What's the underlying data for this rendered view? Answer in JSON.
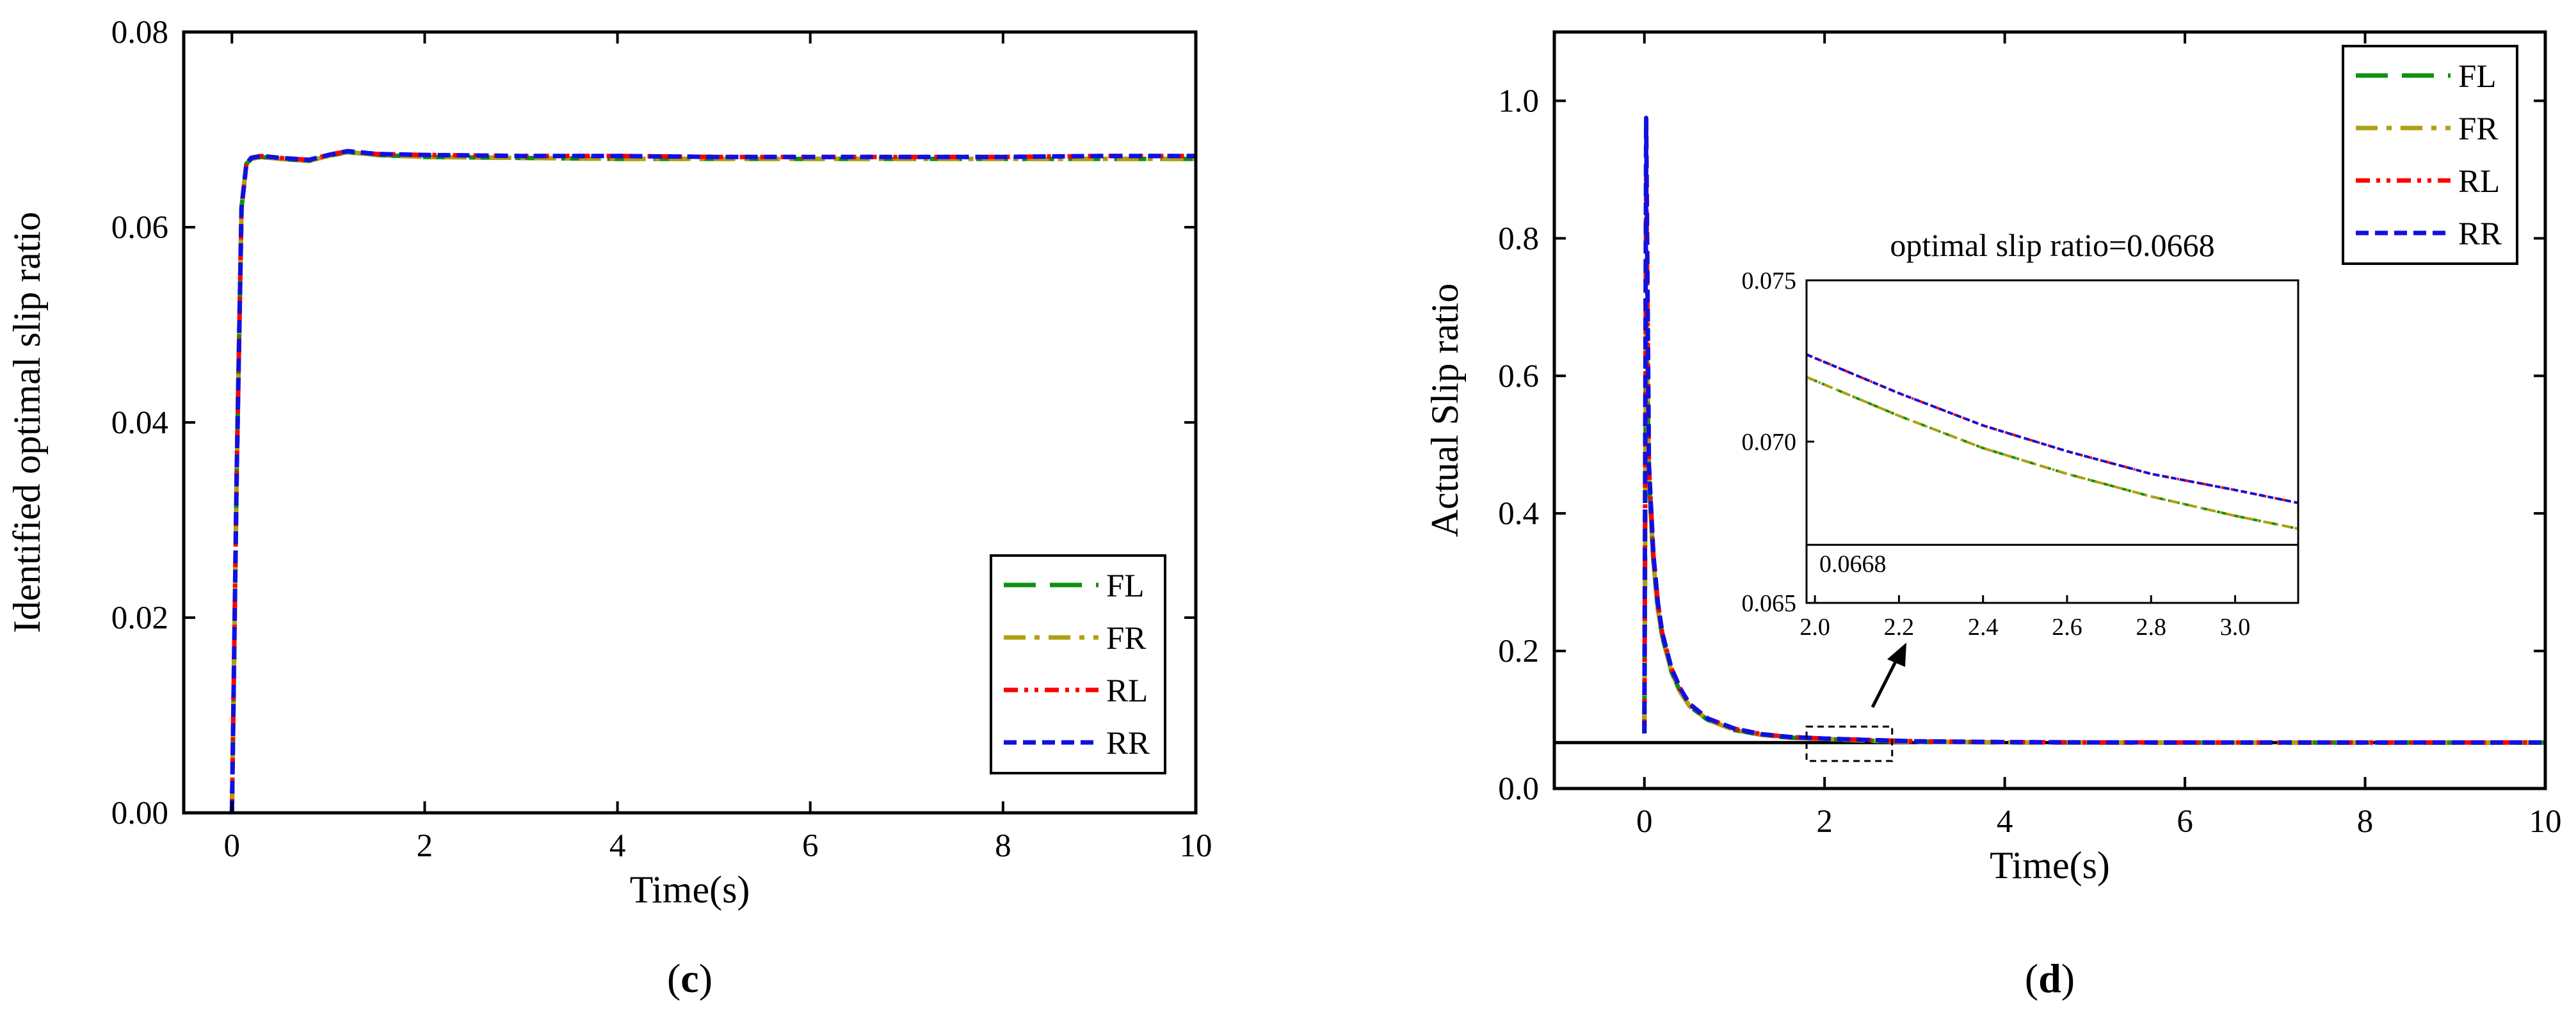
{
  "chart_data": [
    {
      "type": "line",
      "panel": "c",
      "caption_open": "(",
      "caption_letter": "c",
      "caption_close": ")",
      "title": "",
      "xlabel": "Time(s)",
      "ylabel": "Identified optimal slip ratio",
      "xlim": [
        -0.5,
        10
      ],
      "ylim": [
        0,
        0.08
      ],
      "xticks": [
        0,
        2,
        4,
        6,
        8,
        10
      ],
      "xtick_labels": [
        "0",
        "2",
        "4",
        "6",
        "8",
        "10"
      ],
      "yticks": [
        0,
        0.02,
        0.04,
        0.06,
        0.08
      ],
      "ytick_labels": [
        "0.00",
        "0.02",
        "0.04",
        "0.06",
        "0.08"
      ],
      "legend_position": "bottom-right",
      "x": [
        0,
        0.05,
        0.1,
        0.15,
        0.2,
        0.3,
        0.5,
        0.8,
        1.0,
        1.2,
        1.5,
        2,
        3,
        4,
        5,
        6,
        7,
        8,
        9,
        10
      ],
      "series": [
        {
          "name": "FL",
          "color": "#109010",
          "dash": "long-dash",
          "values": [
            0,
            0.035,
            0.062,
            0.0665,
            0.067,
            0.0672,
            0.067,
            0.0668,
            0.0673,
            0.0677,
            0.0674,
            0.0672,
            0.0671,
            0.067,
            0.067,
            0.067,
            0.067,
            0.067,
            0.067,
            0.067
          ]
        },
        {
          "name": "FR",
          "color": "#b0a010",
          "dash": "dash-dot",
          "values": [
            0,
            0.035,
            0.062,
            0.0665,
            0.067,
            0.0672,
            0.067,
            0.0668,
            0.0673,
            0.0677,
            0.0674,
            0.0672,
            0.0671,
            0.067,
            0.067,
            0.067,
            0.067,
            0.067,
            0.067,
            0.067
          ]
        },
        {
          "name": "RL",
          "color": "#ff0000",
          "dash": "dash-dot-dot",
          "values": [
            0,
            0.035,
            0.062,
            0.0665,
            0.0671,
            0.0673,
            0.0671,
            0.0669,
            0.0674,
            0.0678,
            0.0675,
            0.0674,
            0.0673,
            0.0673,
            0.0672,
            0.0672,
            0.0672,
            0.0672,
            0.0673,
            0.0673
          ]
        },
        {
          "name": "RR",
          "color": "#1010e0",
          "dash": "short-dash",
          "values": [
            0,
            0.035,
            0.062,
            0.0665,
            0.0671,
            0.0673,
            0.0671,
            0.0669,
            0.0674,
            0.0678,
            0.0675,
            0.0674,
            0.0673,
            0.0673,
            0.0672,
            0.0672,
            0.0672,
            0.0672,
            0.0673,
            0.0673
          ]
        }
      ]
    },
    {
      "type": "line",
      "panel": "d",
      "caption_open": "(",
      "caption_letter": "d",
      "caption_close": ")",
      "title": "",
      "xlabel": "Time(s)",
      "ylabel": "Actual Slip ratio",
      "xlim": [
        -1,
        10
      ],
      "ylim": [
        0,
        1.1
      ],
      "xticks": [
        0,
        2,
        4,
        6,
        8,
        10
      ],
      "xtick_labels": [
        "0",
        "2",
        "4",
        "6",
        "8",
        "10"
      ],
      "yticks": [
        0,
        0.2,
        0.4,
        0.6,
        0.8,
        1.0
      ],
      "ytick_labels": [
        "0.0",
        "0.2",
        "0.4",
        "0.6",
        "0.8",
        "1.0"
      ],
      "reference_line": {
        "y": 0.0668,
        "color": "#000000"
      },
      "zoom_box": {
        "x": [
          1.8,
          2.75
        ],
        "y": [
          0.04,
          0.09
        ]
      },
      "legend_position": "top-right",
      "x": [
        0,
        0.02,
        0.05,
        0.1,
        0.15,
        0.2,
        0.3,
        0.4,
        0.5,
        0.7,
        1.0,
        1.3,
        1.6,
        2.0,
        2.5,
        3,
        4,
        5,
        6,
        7,
        8,
        9,
        10
      ],
      "series": [
        {
          "name": "FL",
          "color": "#109010",
          "dash": "long-dash",
          "values": [
            0.09,
            0.7,
            0.45,
            0.33,
            0.26,
            0.22,
            0.17,
            0.14,
            0.12,
            0.1,
            0.085,
            0.078,
            0.074,
            0.072,
            0.0695,
            0.068,
            0.067,
            0.0668,
            0.0668,
            0.0668,
            0.0668,
            0.0668,
            0.0668
          ]
        },
        {
          "name": "FR",
          "color": "#b0a010",
          "dash": "dash-dot",
          "values": [
            0.09,
            0.7,
            0.45,
            0.33,
            0.26,
            0.22,
            0.17,
            0.14,
            0.12,
            0.1,
            0.085,
            0.078,
            0.074,
            0.072,
            0.0695,
            0.068,
            0.067,
            0.0668,
            0.0668,
            0.0668,
            0.0668,
            0.0668,
            0.0668
          ]
        },
        {
          "name": "RL",
          "color": "#ff0000",
          "dash": "dash-dot-dot",
          "values": [
            0.08,
            0.9,
            0.47,
            0.34,
            0.27,
            0.225,
            0.175,
            0.145,
            0.123,
            0.102,
            0.087,
            0.079,
            0.075,
            0.0726,
            0.0705,
            0.0687,
            0.0675,
            0.067,
            0.0669,
            0.0669,
            0.0669,
            0.0669,
            0.0669
          ]
        },
        {
          "name": "RR",
          "color": "#1010e0",
          "dash": "short-dash",
          "values": [
            0.08,
            0.975,
            0.47,
            0.34,
            0.27,
            0.225,
            0.175,
            0.145,
            0.123,
            0.102,
            0.087,
            0.079,
            0.075,
            0.0726,
            0.0705,
            0.0687,
            0.0675,
            0.067,
            0.0669,
            0.0669,
            0.0669,
            0.0669,
            0.0669
          ]
        }
      ],
      "inset": {
        "title": "optimal slip ratio=0.0668",
        "xlim": [
          1.98,
          3.15
        ],
        "ylim": [
          0.065,
          0.075
        ],
        "xticks": [
          2.0,
          2.2,
          2.4,
          2.6,
          2.8,
          3.0
        ],
        "xtick_labels": [
          "2.0",
          "2.2",
          "2.4",
          "2.6",
          "2.8",
          "3.0"
        ],
        "yticks": [
          0.065,
          0.07,
          0.075
        ],
        "ytick_labels": [
          "0.065",
          "0.070",
          "0.075"
        ],
        "reference_line": {
          "y": 0.0668,
          "label": "0.0668"
        },
        "x": [
          1.98,
          2.2,
          2.4,
          2.6,
          2.8,
          3.0,
          3.15
        ],
        "series": [
          {
            "name": "FL",
            "color": "#109010",
            "dash": "long-dash",
            "values": [
              0.072,
              0.0708,
              0.0698,
              0.069,
              0.0683,
              0.0677,
              0.0673
            ]
          },
          {
            "name": "FR",
            "color": "#b0a010",
            "dash": "dash-dot",
            "values": [
              0.072,
              0.0708,
              0.0698,
              0.069,
              0.0683,
              0.0677,
              0.0673
            ]
          },
          {
            "name": "RL",
            "color": "#ff0000",
            "dash": "dash-dot-dot",
            "values": [
              0.0727,
              0.0715,
              0.0705,
              0.0697,
              0.069,
              0.0685,
              0.0681
            ]
          },
          {
            "name": "RR",
            "color": "#1010e0",
            "dash": "short-dash",
            "values": [
              0.0727,
              0.0715,
              0.0705,
              0.0697,
              0.069,
              0.0685,
              0.0681
            ]
          }
        ]
      }
    }
  ]
}
